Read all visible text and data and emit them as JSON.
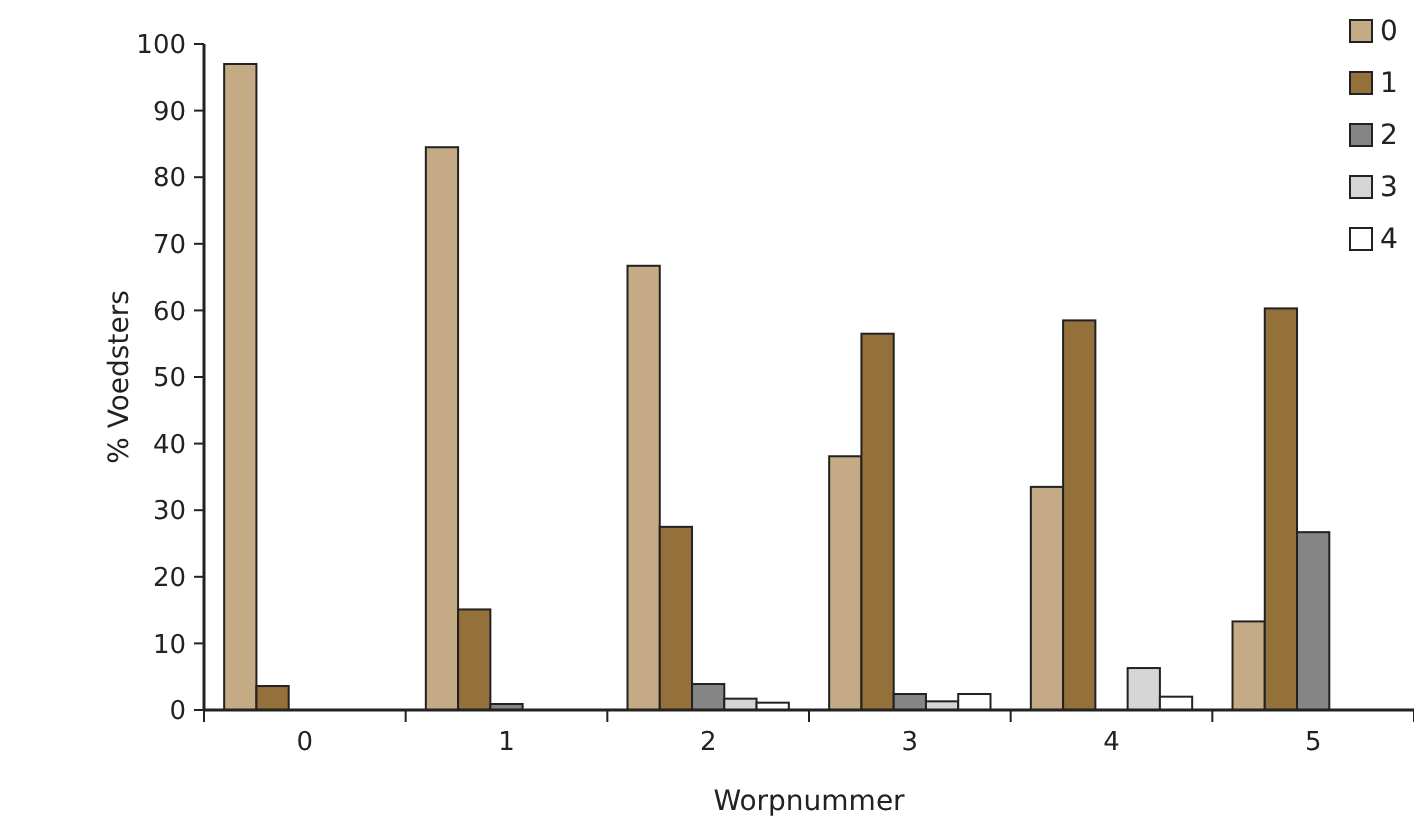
{
  "chart_data": {
    "type": "bar",
    "xlabel": "Worpnummer",
    "ylabel": "% Voedsters",
    "categories": [
      "0",
      "1",
      "2",
      "3",
      "4",
      "5"
    ],
    "series": [
      {
        "name": "0",
        "color": "#c4aa85",
        "values": [
          97,
          84.5,
          66.7,
          38.1,
          33.5,
          13.3
        ]
      },
      {
        "name": "1",
        "color": "#94703a",
        "values": [
          3.6,
          15.1,
          27.5,
          56.5,
          58.5,
          60.3
        ]
      },
      {
        "name": "2",
        "color": "#858585",
        "values": [
          0,
          0.9,
          3.9,
          2.4,
          0,
          26.7
        ]
      },
      {
        "name": "3",
        "color": "#d6d6d6",
        "values": [
          0,
          0,
          1.7,
          1.3,
          6.3,
          0
        ]
      },
      {
        "name": "4",
        "color": "#ffffff",
        "values": [
          0,
          0,
          1.1,
          2.4,
          2.0,
          0
        ]
      }
    ],
    "ylim": [
      0,
      100
    ],
    "yticks": [
      0,
      10,
      20,
      30,
      40,
      50,
      60,
      70,
      80,
      90,
      100
    ],
    "grid": false,
    "legend": "top right"
  }
}
